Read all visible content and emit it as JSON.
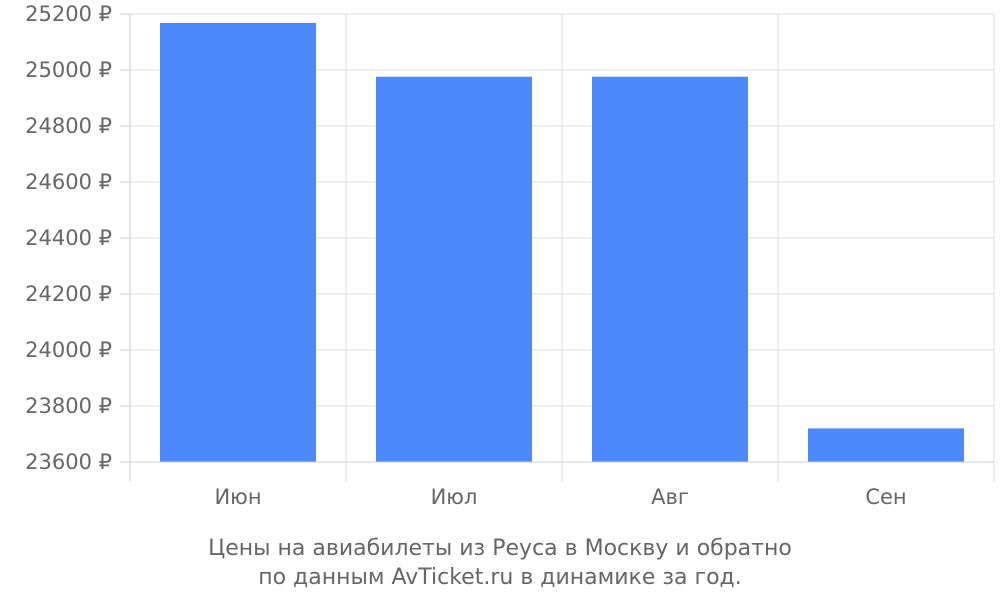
{
  "chart_data": {
    "type": "bar",
    "categories": [
      "Июн",
      "Июл",
      "Авг",
      "Сен"
    ],
    "values": [
      25168,
      24976,
      24976,
      23720
    ],
    "y_tick_labels": [
      "23600 ₽",
      "23800 ₽",
      "24000 ₽",
      "24200 ₽",
      "24400 ₽",
      "24600 ₽",
      "24800 ₽",
      "25000 ₽",
      "25200 ₽"
    ],
    "y_ticks": [
      23600,
      23800,
      24000,
      24200,
      24400,
      24600,
      24800,
      25000,
      25200
    ],
    "ylim": [
      23600,
      25200
    ],
    "grid": true,
    "bar_color": "#4b89fc",
    "caption_lines": [
      "Цены на авиабилеты из Реуса в Москву и обратно",
      "по данным AvTicket.ru в динамике за год."
    ]
  }
}
